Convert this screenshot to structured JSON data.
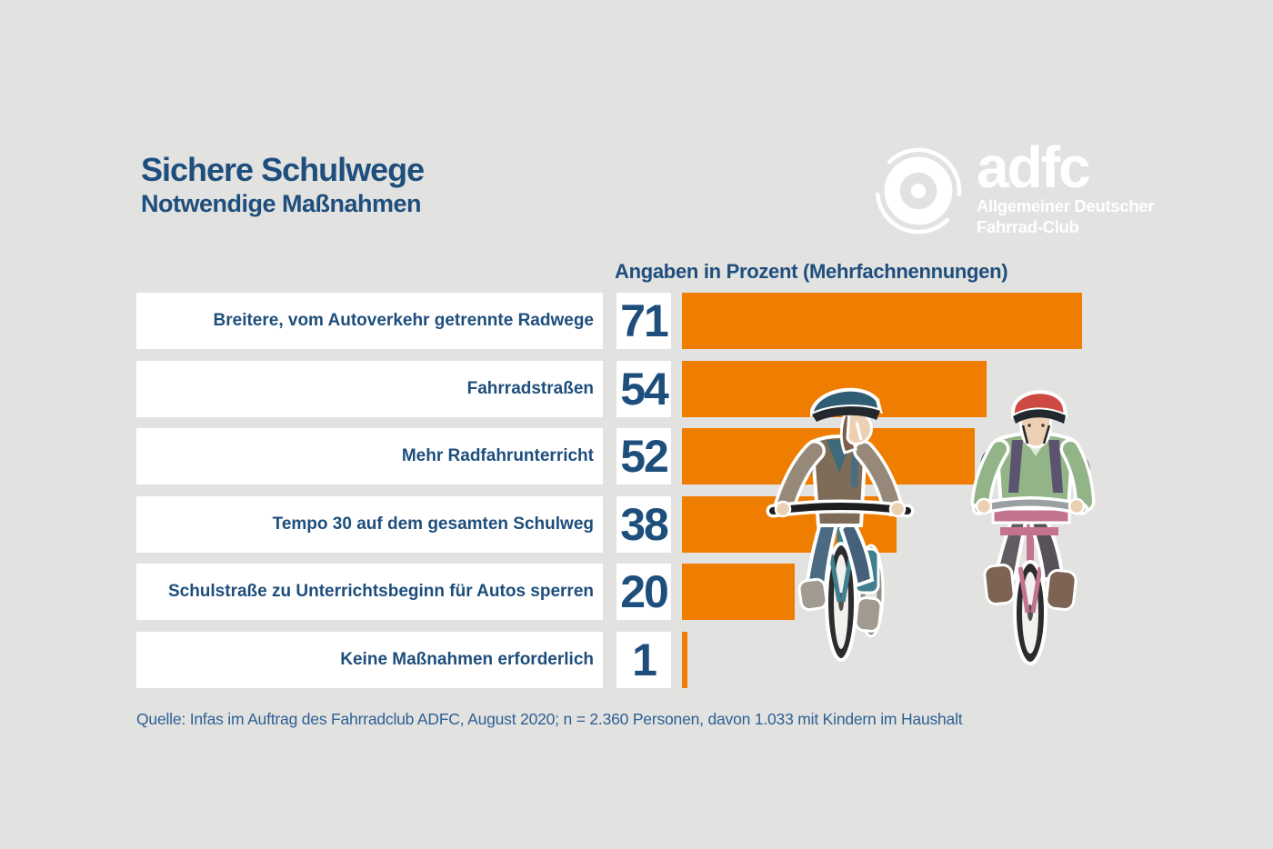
{
  "header": {
    "title": "Sichere Schulwege",
    "subtitle": "Notwendige Maßnahmen"
  },
  "logo": {
    "brand": "adfc",
    "line1": "Allgemeiner Deutscher",
    "line2": "Fahrrad-Club",
    "icon": "bicycle-wheel-icon"
  },
  "chart_data": {
    "type": "bar",
    "orientation": "horizontal",
    "title": "Angaben in Prozent (Mehrfachnennungen)",
    "categories": [
      "Breitere, vom Autoverkehr getrennte Radwege",
      "Fahrradstraßen",
      "Mehr Radfahrunterricht",
      "Tempo 30 auf dem gesamten Schulweg",
      "Schulstraße zu Unterrichtsbeginn für Autos sperren",
      "Keine Maßnahmen erforderlich"
    ],
    "values": [
      71,
      54,
      52,
      38,
      20,
      1
    ],
    "unit": "percent",
    "xlim": [
      0,
      71
    ],
    "grid": false,
    "legend": "none",
    "bar_color": "#ef7d00"
  },
  "source": "Quelle: Infas im Auftrag des Fahrradclub ADFC, August 2020; n = 2.360 Personen, davon 1.033 mit Kindern im Haushalt",
  "colors": {
    "background": "#e2e2e1",
    "accent_orange": "#ef7d00",
    "text_blue": "#1e4e7c",
    "source_blue": "#2e6093",
    "box_white": "#ffffff",
    "logo_white": "#ffffff"
  }
}
